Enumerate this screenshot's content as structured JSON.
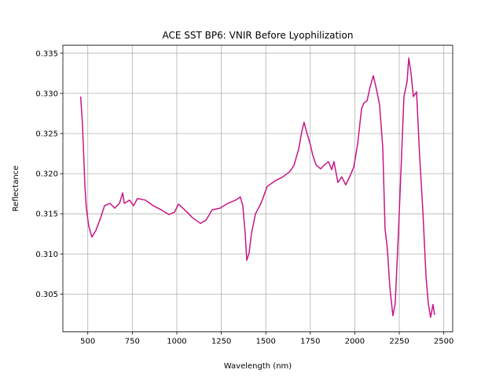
{
  "chart_data": {
    "type": "line",
    "title": "ACE SST BP6: VNIR Before Lyophilization",
    "xlabel": "Wavelength (nm)",
    "ylabel": "Reflectance",
    "xlim": [
      360,
      2550
    ],
    "ylim": [
      0.3003,
      0.336
    ],
    "xticks": [
      500,
      750,
      1000,
      1250,
      1500,
      1750,
      2000,
      2250,
      2500
    ],
    "yticks": [
      0.305,
      {
        "value": 0.31,
        "label": "0.310"
      },
      0.315,
      {
        "value": 0.32,
        "label": "0.320"
      },
      0.325,
      {
        "value": 0.33,
        "label": "0.330"
      },
      0.335
    ],
    "grid": true,
    "series": [
      {
        "name": "BP6",
        "color": "#c71585",
        "x": [
          460,
          470,
          484,
          492,
          505,
          523,
          545,
          572,
          594,
          625,
          651,
          678,
          696,
          705,
          735,
          757,
          779,
          824,
          868,
          912,
          956,
          987,
          1009,
          1044,
          1089,
          1133,
          1164,
          1199,
          1243,
          1287,
          1331,
          1357,
          1371,
          1384,
          1393,
          1406,
          1420,
          1442,
          1473,
          1508,
          1552,
          1596,
          1632,
          1658,
          1685,
          1702,
          1715,
          1729,
          1747,
          1764,
          1782,
          1808,
          1830,
          1852,
          1870,
          1883,
          1905,
          1927,
          1949,
          1971,
          1994,
          2016,
          2038,
          2051,
          2069,
          2086,
          2104,
          2122,
          2139,
          2157,
          2170,
          2183,
          2197,
          2214,
          2227,
          2245,
          2263,
          2276,
          2294,
          2303,
          2316,
          2329,
          2347,
          2364,
          2382,
          2400,
          2413,
          2426,
          2439,
          2448
        ],
        "values": [
          0.3296,
          0.3262,
          0.3184,
          0.3157,
          0.3135,
          0.3121,
          0.3129,
          0.3145,
          0.316,
          0.3163,
          0.3157,
          0.3163,
          0.3176,
          0.3163,
          0.3167,
          0.316,
          0.3169,
          0.3167,
          0.316,
          0.3155,
          0.3149,
          0.3152,
          0.3162,
          0.3155,
          0.3145,
          0.3138,
          0.3142,
          0.3155,
          0.3157,
          0.3163,
          0.3167,
          0.3171,
          0.316,
          0.3126,
          0.3092,
          0.3101,
          0.3126,
          0.315,
          0.3163,
          0.3184,
          0.3191,
          0.3196,
          0.3202,
          0.321,
          0.3231,
          0.3252,
          0.3264,
          0.3252,
          0.3239,
          0.3223,
          0.3211,
          0.3206,
          0.3211,
          0.3215,
          0.3205,
          0.3215,
          0.3189,
          0.3196,
          0.3186,
          0.3196,
          0.3208,
          0.3237,
          0.3281,
          0.3288,
          0.3291,
          0.3308,
          0.3322,
          0.3305,
          0.3286,
          0.3233,
          0.3131,
          0.3106,
          0.3058,
          0.3023,
          0.3038,
          0.3126,
          0.3223,
          0.3296,
          0.3315,
          0.3344,
          0.3325,
          0.3296,
          0.3302,
          0.3223,
          0.3155,
          0.3072,
          0.3038,
          0.3021,
          0.3037,
          0.3024
        ]
      }
    ]
  }
}
